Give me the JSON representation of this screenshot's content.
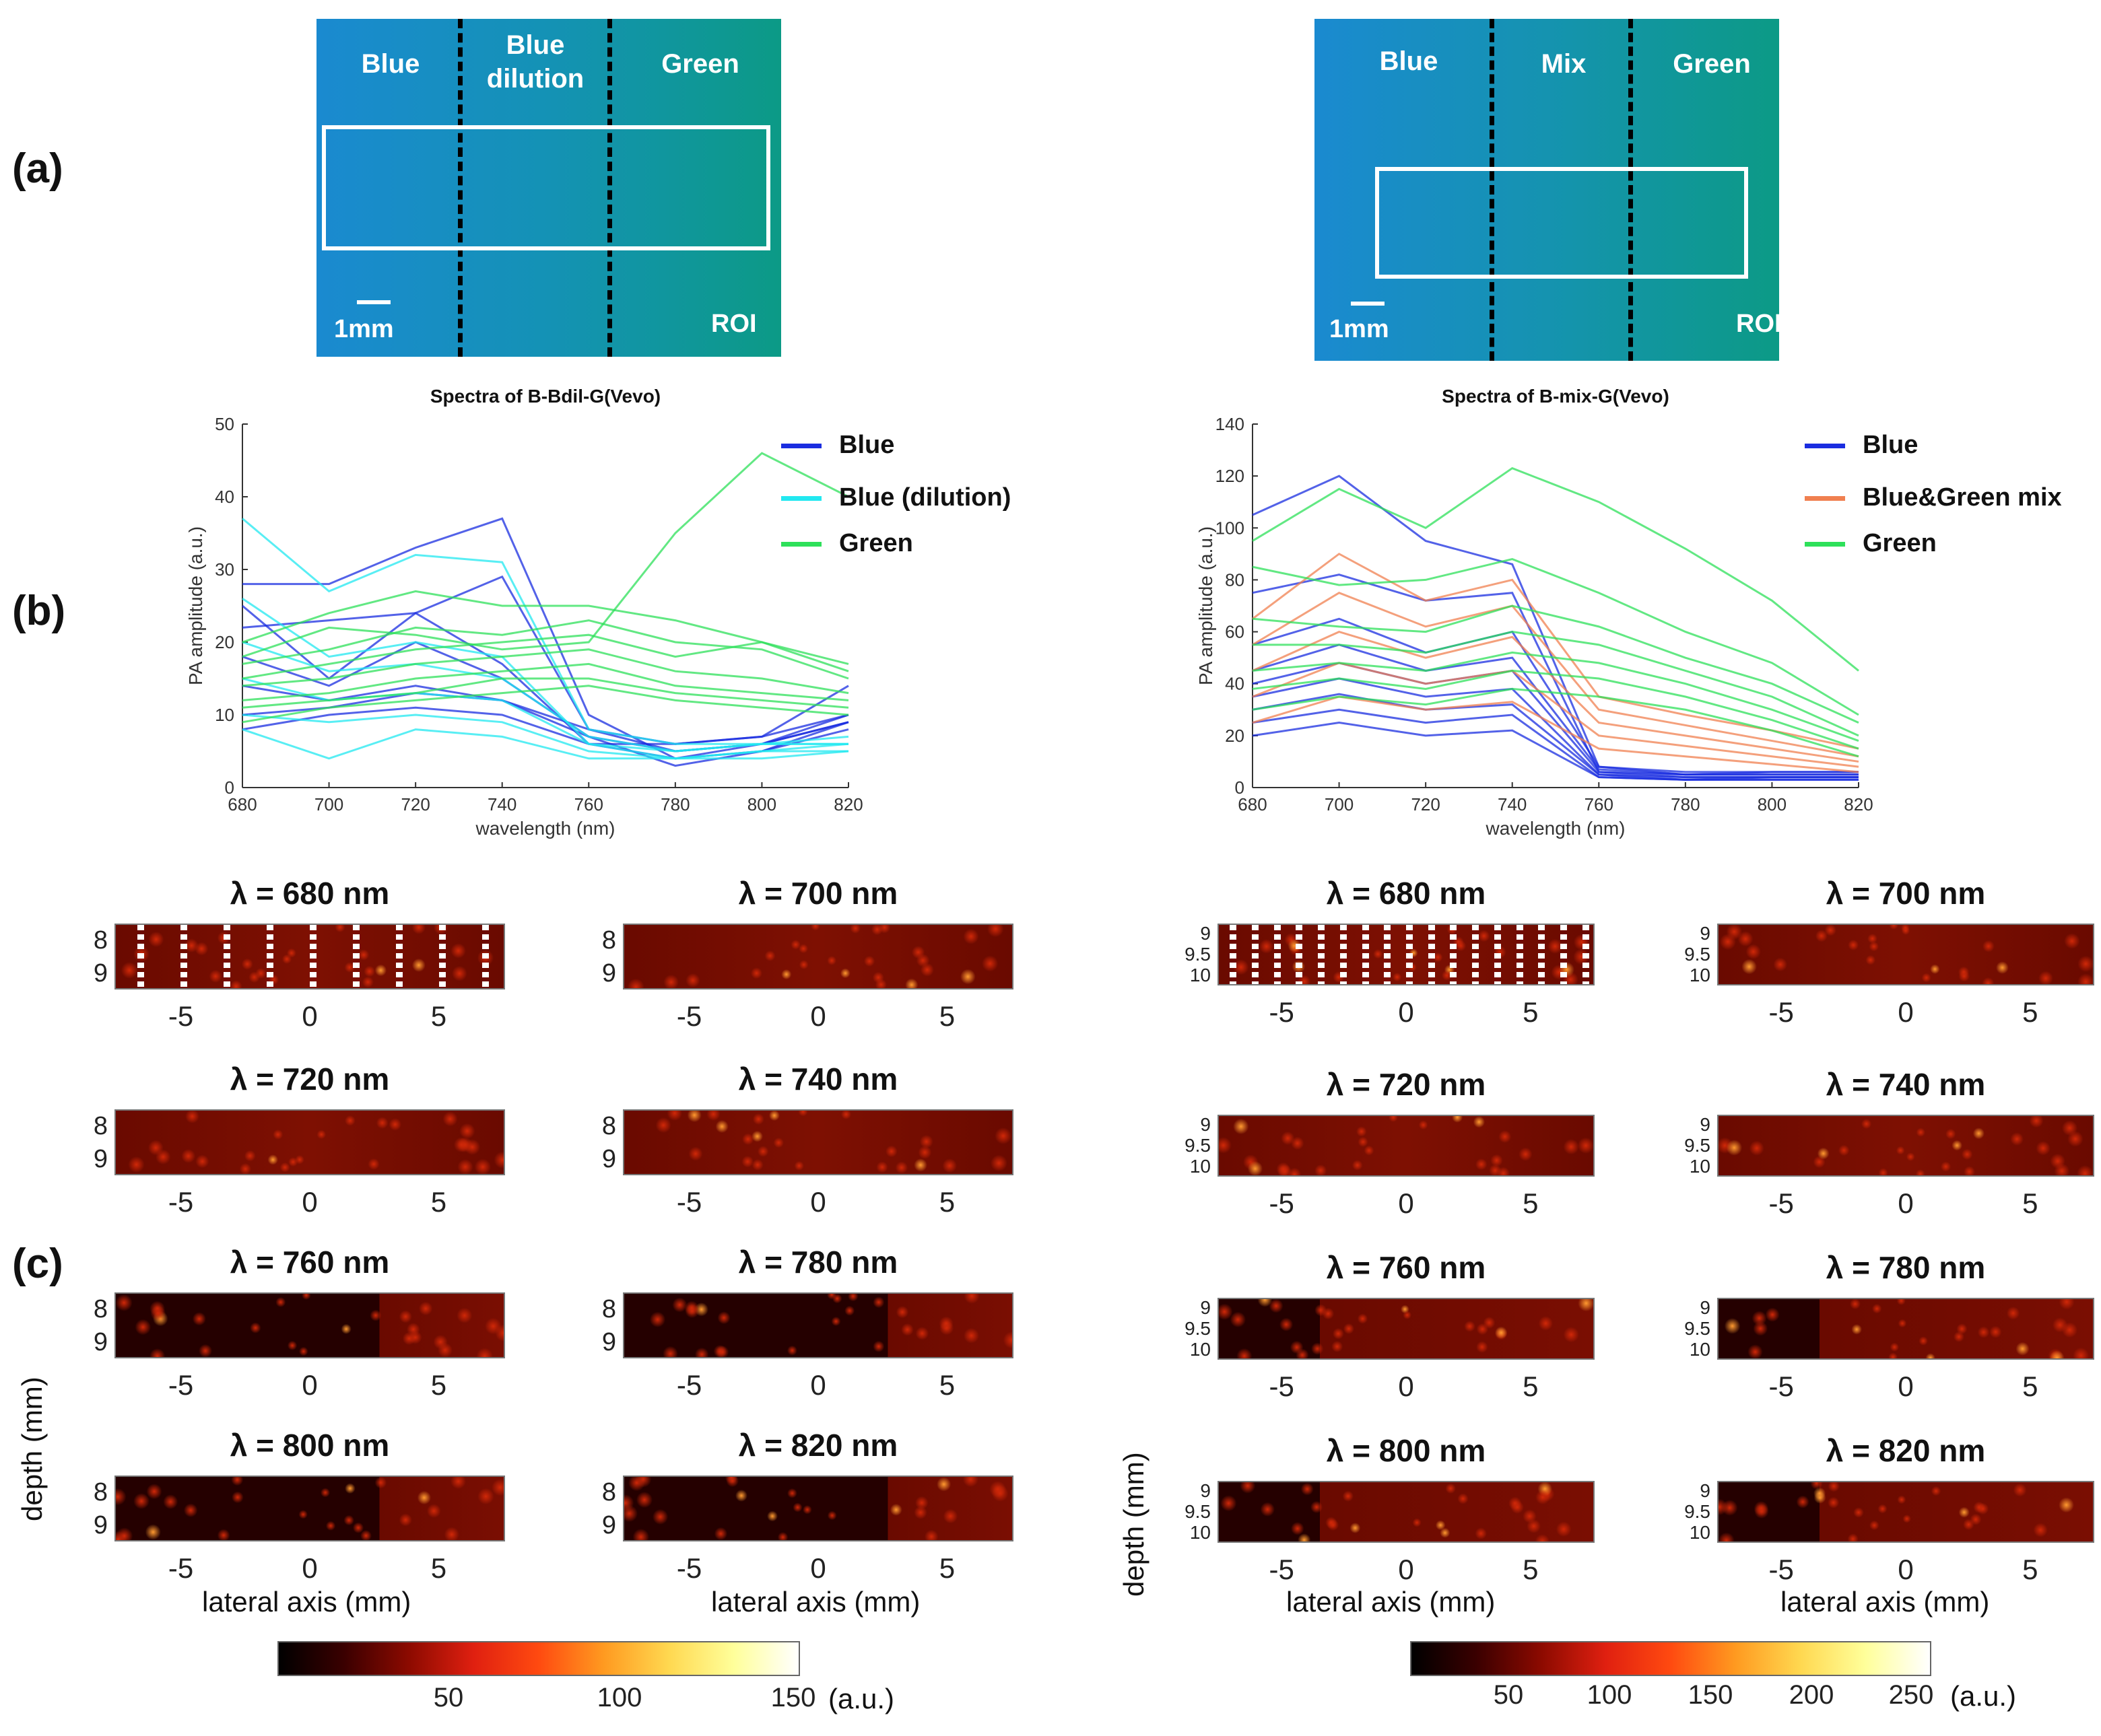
{
  "panel_labels": {
    "a": "(a)",
    "b": "(b)",
    "c": "(c)"
  },
  "photos": [
    {
      "zones": [
        "Blue",
        "Blue\ndilution",
        "Green"
      ],
      "scale_label": "1mm",
      "roi_label": "ROI",
      "colors": {
        "left": "#1a8ad0",
        "mid": "#1492b5",
        "right": "#0c9a86"
      }
    },
    {
      "zones": [
        "Blue",
        "Mix",
        "Green"
      ],
      "scale_label": "1mm",
      "roi_label": "ROI",
      "colors": {
        "left": "#1a8ad0",
        "mid": "#1593b0",
        "right": "#0c9a86"
      }
    }
  ],
  "legends": [
    {
      "items": [
        {
          "label": "Blue",
          "color": "#1a2de0"
        },
        {
          "label": "Blue (dilution)",
          "color": "#22e8f0"
        },
        {
          "label": "Green",
          "color": "#2ee05a"
        }
      ]
    },
    {
      "items": [
        {
          "label": "Blue",
          "color": "#1a2de0"
        },
        {
          "label": "Blue&Green mix",
          "color": "#f08050"
        },
        {
          "label": "Green",
          "color": "#2ee05a"
        }
      ]
    }
  ],
  "chart_data": [
    {
      "type": "line",
      "title": "Spectra of B-Bdil-G(Vevo)",
      "xlabel": "wavelength (nm)",
      "ylabel": "PA amplitude (a.u.)",
      "x": [
        680,
        700,
        720,
        740,
        760,
        780,
        800,
        820
      ],
      "xlim": [
        680,
        820
      ],
      "ylim": [
        0,
        50
      ],
      "xticks": [
        680,
        700,
        720,
        740,
        760,
        780,
        800,
        820
      ],
      "yticks": [
        0,
        10,
        20,
        30,
        40,
        50
      ],
      "series": [
        {
          "name": "Blue",
          "color": "#1a2de0",
          "values": [
            28,
            28,
            33,
            37,
            10,
            4,
            6,
            9
          ]
        },
        {
          "name": "Blue",
          "color": "#1a2de0",
          "values": [
            22,
            23,
            24,
            29,
            8,
            5,
            6,
            10
          ]
        },
        {
          "name": "Blue",
          "color": "#1a2de0",
          "values": [
            25,
            15,
            24,
            17,
            6,
            4,
            5,
            9
          ]
        },
        {
          "name": "Blue",
          "color": "#1a2de0",
          "values": [
            18,
            14,
            20,
            15,
            7,
            3,
            5,
            8
          ]
        },
        {
          "name": "Blue",
          "color": "#1a2de0",
          "values": [
            14,
            12,
            14,
            12,
            8,
            6,
            7,
            14
          ]
        },
        {
          "name": "Blue",
          "color": "#1a2de0",
          "values": [
            10,
            11,
            13,
            12,
            7,
            5,
            6,
            9
          ]
        },
        {
          "name": "Blue",
          "color": "#1a2de0",
          "values": [
            8,
            10,
            11,
            10,
            6,
            6,
            7,
            10
          ]
        },
        {
          "name": "Blue (dilution)",
          "color": "#22e8f0",
          "values": [
            37,
            27,
            32,
            31,
            8,
            6,
            6,
            6
          ]
        },
        {
          "name": "Blue (dilution)",
          "color": "#22e8f0",
          "values": [
            26,
            18,
            20,
            18,
            6,
            4,
            5,
            5
          ]
        },
        {
          "name": "Blue (dilution)",
          "color": "#22e8f0",
          "values": [
            20,
            16,
            17,
            15,
            7,
            5,
            6,
            7
          ]
        },
        {
          "name": "Blue (dilution)",
          "color": "#22e8f0",
          "values": [
            15,
            12,
            13,
            12,
            6,
            5,
            6,
            6
          ]
        },
        {
          "name": "Blue (dilution)",
          "color": "#22e8f0",
          "values": [
            10,
            9,
            10,
            9,
            5,
            4,
            5,
            6
          ]
        },
        {
          "name": "Blue (dilution)",
          "color": "#22e8f0",
          "values": [
            8,
            4,
            8,
            7,
            4,
            4,
            4,
            5
          ]
        },
        {
          "name": "Green",
          "color": "#2ee05a",
          "values": [
            18,
            22,
            21,
            19,
            20,
            35,
            46,
            40
          ]
        },
        {
          "name": "Green",
          "color": "#2ee05a",
          "values": [
            20,
            24,
            27,
            25,
            25,
            23,
            20,
            16
          ]
        },
        {
          "name": "Green",
          "color": "#2ee05a",
          "values": [
            17,
            19,
            22,
            21,
            23,
            20,
            19,
            15
          ]
        },
        {
          "name": "Green",
          "color": "#2ee05a",
          "values": [
            15,
            17,
            19,
            20,
            21,
            18,
            20,
            17
          ]
        },
        {
          "name": "Green",
          "color": "#2ee05a",
          "values": [
            14,
            15,
            17,
            18,
            19,
            16,
            15,
            13
          ]
        },
        {
          "name": "Green",
          "color": "#2ee05a",
          "values": [
            12,
            13,
            15,
            16,
            17,
            14,
            13,
            12
          ]
        },
        {
          "name": "Green",
          "color": "#2ee05a",
          "values": [
            11,
            12,
            13,
            15,
            15,
            13,
            12,
            11
          ]
        },
        {
          "name": "Green",
          "color": "#2ee05a",
          "values": [
            9,
            11,
            12,
            13,
            14,
            12,
            11,
            10
          ]
        }
      ]
    },
    {
      "type": "line",
      "title": "Spectra of B-mix-G(Vevo)",
      "xlabel": "wavelength (nm)",
      "ylabel": "PA amplitude (a.u.)",
      "x": [
        680,
        700,
        720,
        740,
        760,
        780,
        800,
        820
      ],
      "xlim": [
        680,
        820
      ],
      "ylim": [
        0,
        140
      ],
      "xticks": [
        680,
        700,
        720,
        740,
        760,
        780,
        800,
        820
      ],
      "yticks": [
        0,
        20,
        40,
        60,
        80,
        100,
        120,
        140
      ],
      "series": [
        {
          "name": "Blue",
          "color": "#1a2de0",
          "values": [
            105,
            120,
            95,
            86,
            8,
            5,
            6,
            6
          ]
        },
        {
          "name": "Blue",
          "color": "#1a2de0",
          "values": [
            75,
            82,
            72,
            75,
            6,
            5,
            5,
            5
          ]
        },
        {
          "name": "Blue",
          "color": "#1a2de0",
          "values": [
            55,
            65,
            52,
            60,
            8,
            6,
            6,
            6
          ]
        },
        {
          "name": "Blue",
          "color": "#1a2de0",
          "values": [
            45,
            55,
            45,
            50,
            7,
            5,
            5,
            5
          ]
        },
        {
          "name": "Blue",
          "color": "#1a2de0",
          "values": [
            40,
            48,
            40,
            45,
            6,
            4,
            4,
            4
          ]
        },
        {
          "name": "Blue",
          "color": "#1a2de0",
          "values": [
            35,
            42,
            35,
            38,
            5,
            4,
            4,
            4
          ]
        },
        {
          "name": "Blue",
          "color": "#1a2de0",
          "values": [
            30,
            36,
            30,
            32,
            5,
            3,
            4,
            4
          ]
        },
        {
          "name": "Blue",
          "color": "#1a2de0",
          "values": [
            25,
            30,
            25,
            28,
            4,
            3,
            3,
            3
          ]
        },
        {
          "name": "Blue",
          "color": "#1a2de0",
          "values": [
            20,
            25,
            20,
            22,
            4,
            3,
            3,
            3
          ]
        },
        {
          "name": "Blue&Green mix",
          "color": "#f08050",
          "values": [
            65,
            90,
            72,
            80,
            35,
            28,
            22,
            15
          ]
        },
        {
          "name": "Blue&Green mix",
          "color": "#f08050",
          "values": [
            55,
            75,
            62,
            70,
            30,
            24,
            18,
            12
          ]
        },
        {
          "name": "Blue&Green mix",
          "color": "#f08050",
          "values": [
            45,
            60,
            50,
            58,
            25,
            20,
            15,
            10
          ]
        },
        {
          "name": "Blue&Green mix",
          "color": "#f08050",
          "values": [
            35,
            48,
            40,
            45,
            20,
            16,
            12,
            8
          ]
        },
        {
          "name": "Blue&Green mix",
          "color": "#f08050",
          "values": [
            25,
            35,
            30,
            33,
            15,
            12,
            9,
            6
          ]
        },
        {
          "name": "Green",
          "color": "#2ee05a",
          "values": [
            95,
            115,
            100,
            123,
            110,
            92,
            72,
            45
          ]
        },
        {
          "name": "Green",
          "color": "#2ee05a",
          "values": [
            85,
            78,
            80,
            88,
            75,
            60,
            48,
            28
          ]
        },
        {
          "name": "Green",
          "color": "#2ee05a",
          "values": [
            65,
            62,
            60,
            70,
            62,
            50,
            40,
            25
          ]
        },
        {
          "name": "Green",
          "color": "#2ee05a",
          "values": [
            55,
            55,
            52,
            60,
            55,
            45,
            35,
            20
          ]
        },
        {
          "name": "Green",
          "color": "#2ee05a",
          "values": [
            45,
            48,
            45,
            52,
            48,
            40,
            30,
            18
          ]
        },
        {
          "name": "Green",
          "color": "#2ee05a",
          "values": [
            38,
            42,
            38,
            45,
            42,
            35,
            26,
            15
          ]
        },
        {
          "name": "Green",
          "color": "#2ee05a",
          "values": [
            30,
            35,
            32,
            38,
            35,
            30,
            22,
            12
          ]
        }
      ]
    }
  ],
  "heatmaps_left": {
    "titles": [
      "λ = 680 nm",
      "λ = 700 nm",
      "λ = 720 nm",
      "λ = 740 nm",
      "λ = 760 nm",
      "λ = 780 nm",
      "λ = 800 nm",
      "λ = 820 nm"
    ],
    "x_ticks": [
      "-5",
      "0",
      "5"
    ],
    "y_ticks": [
      "8",
      "9"
    ],
    "xlabel": "lateral axis (mm)",
    "ylabel": "depth (mm)",
    "colorbar": {
      "ticks": [
        "50",
        "100",
        "150"
      ],
      "unit": "(a.u.)",
      "max": 160
    }
  },
  "heatmaps_right": {
    "titles": [
      "λ = 680 nm",
      "λ = 700 nm",
      "λ = 720 nm",
      "λ = 740 nm",
      "λ = 760 nm",
      "λ = 780 nm",
      "λ = 800 nm",
      "λ = 820 nm"
    ],
    "x_ticks": [
      "-5",
      "0",
      "5"
    ],
    "y_ticks": [
      "9",
      "9.5",
      "10"
    ],
    "xlabel": "lateral axis (mm)",
    "ylabel": "depth (mm)",
    "colorbar": {
      "ticks": [
        "50",
        "100",
        "150",
        "200",
        "250"
      ],
      "unit": "(a.u.)",
      "max": 260
    }
  }
}
